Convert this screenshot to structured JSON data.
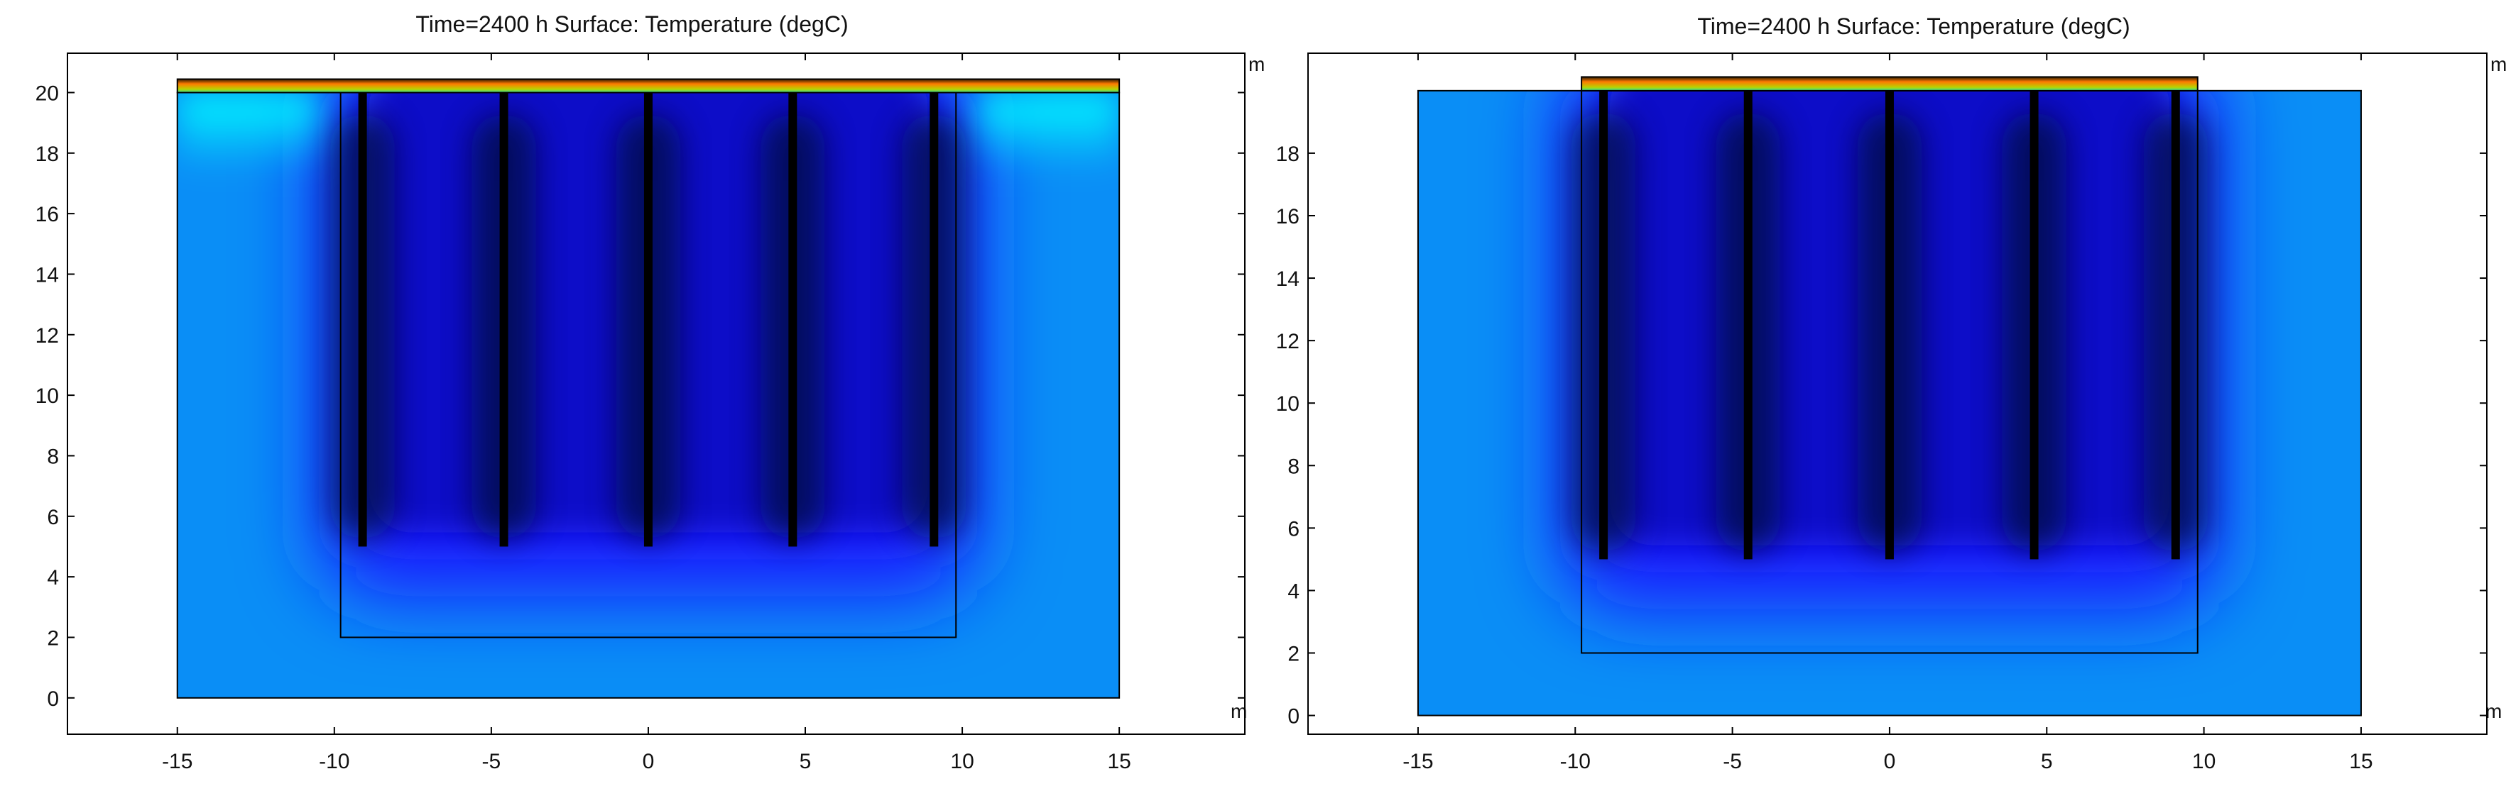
{
  "chart_data": [
    {
      "type": "heatmap",
      "title": "Time=2400 h   Surface: Temperature (degC)",
      "xlabel": "m",
      "ylabel": "m",
      "xlim": [
        -18.5,
        19
      ],
      "ylim": [
        -1.2,
        21.3
      ],
      "xticks": [
        -15,
        -10,
        -5,
        0,
        5,
        10,
        15
      ],
      "xtick_labels": [
        "-15",
        "-10",
        "-5",
        "0",
        "5",
        "10",
        "15"
      ],
      "yticks": [
        0,
        2,
        4,
        6,
        8,
        10,
        12,
        14,
        16,
        18,
        20
      ],
      "ytick_labels": [
        "0",
        "2",
        "4",
        "6",
        "8",
        "10",
        "12",
        "14",
        "16",
        "18",
        "20"
      ],
      "domain": {
        "x": [
          -15,
          15
        ],
        "y": [
          0,
          20
        ]
      },
      "inner_box": {
        "x": [
          -9.8,
          9.8
        ],
        "y": [
          2,
          20
        ]
      },
      "pipes": [
        -9.1,
        -4.6,
        0,
        4.6,
        9.1
      ],
      "pipe_bottom": 5,
      "surface_layer": {
        "x": [
          -15,
          15
        ],
        "y": [
          20,
          20.35
        ]
      },
      "warm_top_edge": true,
      "colors": {
        "background": "#0a8ef6",
        "cold_core": "#060a3c",
        "mid": "#1b1bff",
        "warm": "#00ffff",
        "hot": "#ff7a00"
      }
    },
    {
      "type": "heatmap",
      "title": "Time=2400 h   Surface: Temperature (degC)",
      "xlabel": "m",
      "ylabel": "m",
      "xlim": [
        -18.5,
        19
      ],
      "ylim": [
        -0.6,
        21.2
      ],
      "xticks": [
        -15,
        -10,
        -5,
        0,
        5,
        10,
        15
      ],
      "xtick_labels": [
        "-15",
        "-10",
        "-5",
        "0",
        "5",
        "10",
        "15"
      ],
      "yticks": [
        0,
        2,
        4,
        6,
        8,
        10,
        12,
        14,
        16,
        18
      ],
      "ytick_labels": [
        "0",
        "2",
        "4",
        "6",
        "8",
        "10",
        "12",
        "14",
        "16",
        "18"
      ],
      "domain": {
        "x": [
          -15,
          15
        ],
        "y": [
          0,
          20
        ]
      },
      "inner_box": {
        "x": [
          -9.8,
          9.8
        ],
        "y": [
          2,
          20
        ]
      },
      "pipes": [
        -9.1,
        -4.5,
        0,
        4.6,
        9.1
      ],
      "pipe_bottom": 5,
      "surface_layer": {
        "x": [
          -9.8,
          9.8
        ],
        "y": [
          20,
          20.35
        ]
      },
      "warm_top_edge": false,
      "colors": {
        "background": "#0a8ef6",
        "cold_core": "#060a3c",
        "mid": "#1b1bff",
        "warm": "#00ffff",
        "hot": "#ff7a00"
      }
    }
  ]
}
